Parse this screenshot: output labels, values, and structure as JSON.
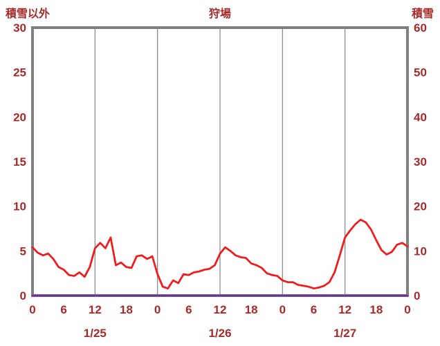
{
  "chart_data": {
    "type": "line",
    "title": "狩場",
    "left_axis_label": "積雪以外",
    "right_axis_label": "積雪",
    "left_ylim": [
      0,
      30
    ],
    "left_ticks": [
      0,
      5,
      10,
      15,
      20,
      25,
      30
    ],
    "right_ylim": [
      0,
      60
    ],
    "right_ticks": [
      0,
      10,
      20,
      30,
      40,
      50,
      60
    ],
    "x_range_hours": [
      0,
      72
    ],
    "x_tick_hours": [
      0,
      6,
      12,
      18,
      24,
      30,
      36,
      42,
      48,
      54,
      60,
      66,
      72
    ],
    "x_tick_labels": [
      "0",
      "6",
      "12",
      "18",
      "0",
      "6",
      "12",
      "18",
      "0",
      "6",
      "12",
      "18",
      "0"
    ],
    "gridline_hours": [
      12,
      24,
      36,
      48,
      60
    ],
    "date_labels": [
      {
        "label": "1/25",
        "hour": 12
      },
      {
        "label": "1/26",
        "hour": 36
      },
      {
        "label": "1/27",
        "hour": 60
      }
    ],
    "colors": {
      "frame": "#7f7f7f",
      "grid": "#8c8c8c",
      "axis_text": "#a52a2a",
      "background": "#ffffff"
    },
    "series": [
      {
        "name": "積雪",
        "axis": "right",
        "color": "#7030a0",
        "line_width": 2.8,
        "constant_value": 0,
        "values": []
      },
      {
        "name": "積雪以外",
        "axis": "left",
        "color": "#ee1c1c",
        "line_width": 2.8,
        "values": [
          5.4,
          4.8,
          4.5,
          4.7,
          4.1,
          3.2,
          2.9,
          2.3,
          2.2,
          2.6,
          2.1,
          3.2,
          5.3,
          5.9,
          5.3,
          6.5,
          3.4,
          3.7,
          3.2,
          3.1,
          4.4,
          4.5,
          4.1,
          4.4,
          2.4,
          1.0,
          0.8,
          1.7,
          1.4,
          2.4,
          2.3,
          2.6,
          2.7,
          2.9,
          3.0,
          3.4,
          4.7,
          5.4,
          5.0,
          4.5,
          4.3,
          4.2,
          3.6,
          3.4,
          3.1,
          2.5,
          2.3,
          2.2,
          1.7,
          1.5,
          1.5,
          1.2,
          1.1,
          1.0,
          0.8,
          0.9,
          1.1,
          1.5,
          2.6,
          4.5,
          6.5,
          7.3,
          8.0,
          8.5,
          8.2,
          7.4,
          6.2,
          5.1,
          4.6,
          4.9,
          5.7,
          5.9,
          5.5
        ]
      }
    ]
  }
}
